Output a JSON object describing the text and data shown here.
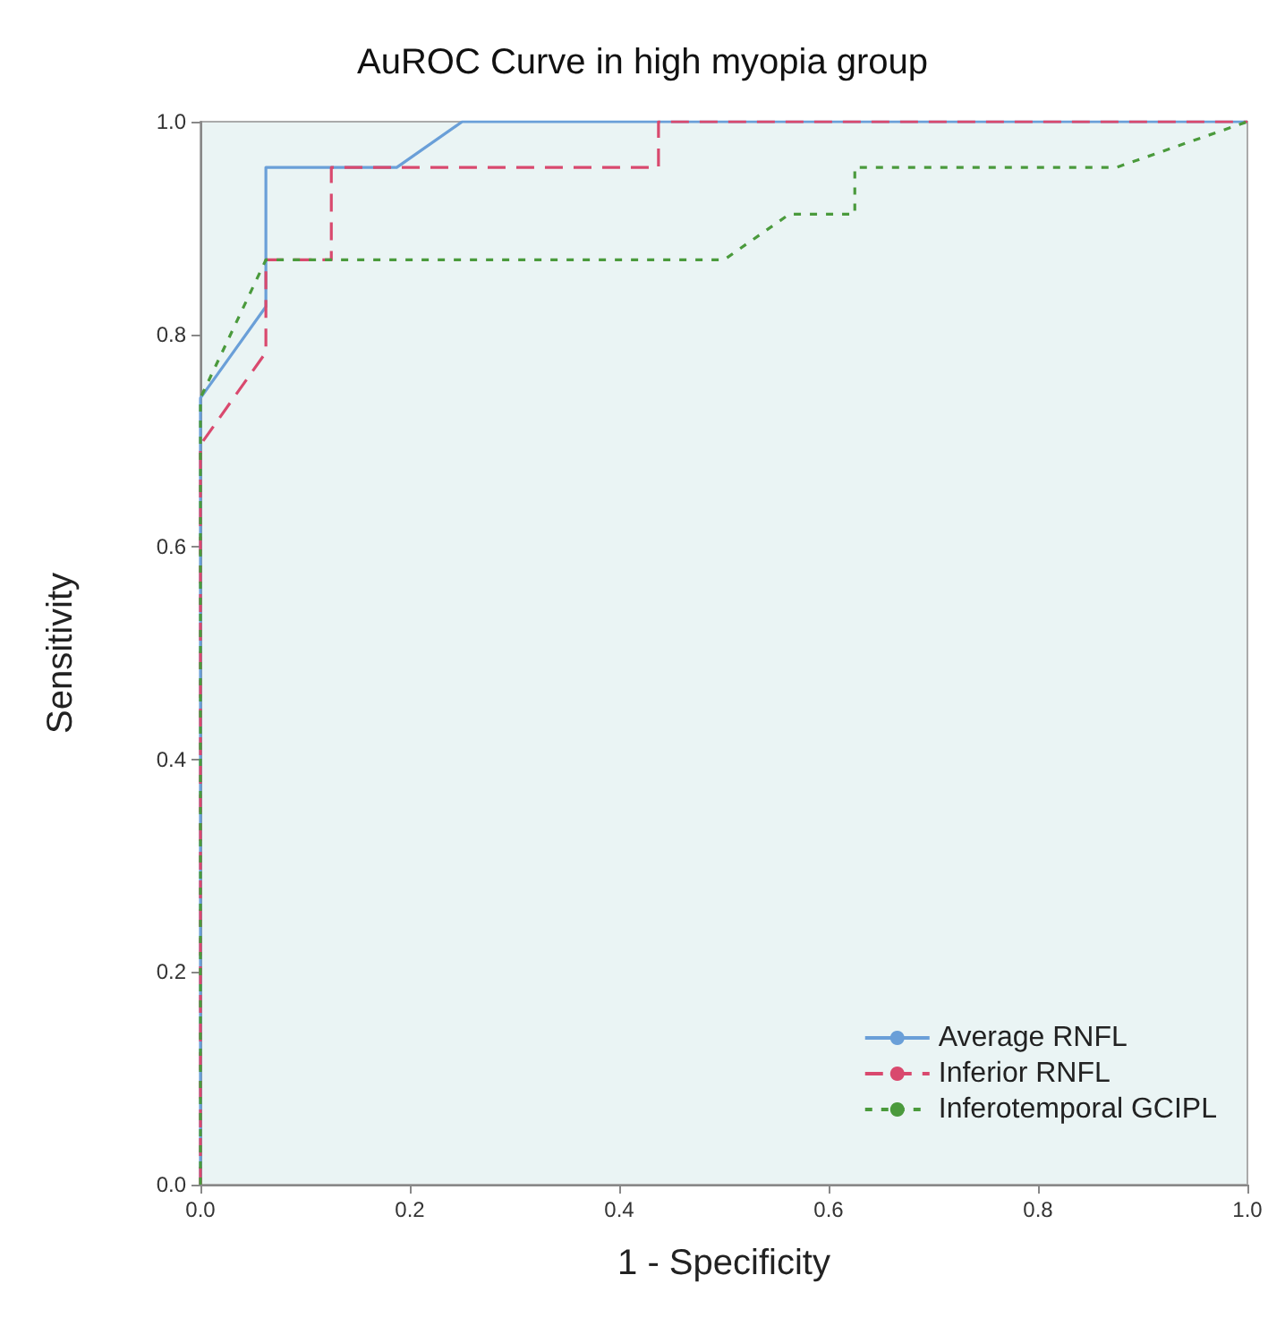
{
  "chart_data": {
    "type": "line",
    "title": "AuROC Curve in high myopia group",
    "xlabel": "1 - Specificity",
    "ylabel": "Sensitivity",
    "xlim": [
      0,
      1
    ],
    "ylim": [
      0,
      1
    ],
    "xticks": [
      {
        "value": 0,
        "label": "0.0"
      },
      0.2,
      0.4,
      0.6,
      0.8,
      {
        "value": 1,
        "label": "1.0"
      }
    ],
    "yticks": [
      {
        "value": 0,
        "label": "0.0"
      },
      0.2,
      0.4,
      0.6,
      0.8,
      {
        "value": 1,
        "label": "1.0"
      }
    ],
    "grid": false,
    "legend": "bottom right",
    "marker": "none",
    "series": [
      {
        "name": "Average RNFL",
        "color": "#6a9fd8",
        "line_style": "solid",
        "x": [
          0,
          0,
          0.0625,
          0.0625,
          0.1875,
          0.25,
          1
        ],
        "values": [
          0,
          0.74,
          0.826,
          0.957,
          0.957,
          1,
          1
        ]
      },
      {
        "name": "Inferior RNFL",
        "color": "#d9496e",
        "line_style": "dashed",
        "x": [
          0,
          0,
          0.0625,
          0.0625,
          0.125,
          0.125,
          0.4375,
          0.4375,
          1
        ],
        "values": [
          0,
          0.696,
          0.783,
          0.87,
          0.87,
          0.957,
          0.957,
          1,
          1
        ]
      },
      {
        "name": "Inferotemporal GCIPL",
        "color": "#4a9a3c",
        "line_style": "dotted",
        "x": [
          0,
          0,
          0.0625,
          0.5,
          0.5625,
          0.625,
          0.625,
          0.875,
          1
        ],
        "values": [
          0,
          0.74,
          0.87,
          0.87,
          0.913,
          0.913,
          0.957,
          0.957,
          1
        ]
      }
    ]
  }
}
